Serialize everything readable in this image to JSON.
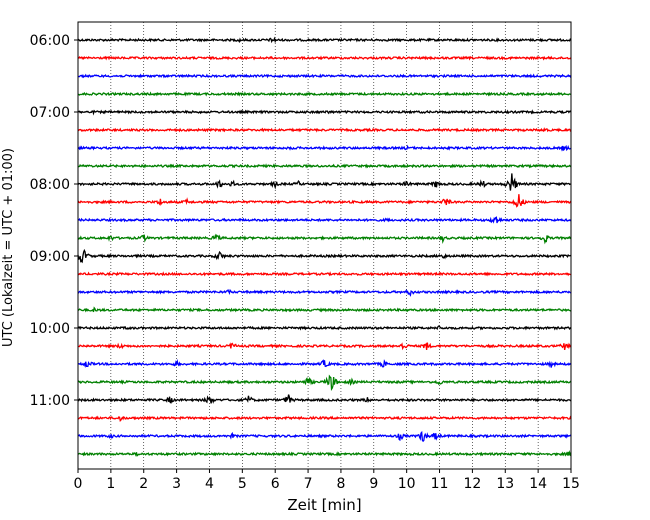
{
  "chart_data": {
    "type": "line",
    "title": "",
    "xlabel": "Zeit  [min]",
    "ylabel": "UTC (Lokalzeit = UTC + 01:00)",
    "xlim": [
      0,
      15
    ],
    "x_ticks": [
      "0",
      "1",
      "2",
      "3",
      "4",
      "5",
      "6",
      "7",
      "8",
      "9",
      "10",
      "11",
      "12",
      "13",
      "14",
      "15"
    ],
    "y_ticks": [
      "06:00",
      "07:00",
      "08:00",
      "09:00",
      "10:00",
      "11:00"
    ],
    "y_tick_trace_index": [
      0,
      4,
      8,
      12,
      16,
      20
    ],
    "grid": "vertical dotted at each minute",
    "colors": {
      "black": "#000000",
      "red": "#ff0000",
      "blue": "#0000ff",
      "green": "#008000"
    },
    "traces": [
      {
        "start": "06:00",
        "color": "#000000",
        "events": [
          [
            4.9,
            0.25
          ],
          [
            5.9,
            0.3
          ],
          [
            6.0,
            0.25
          ]
        ]
      },
      {
        "start": "06:15",
        "color": "#ff0000",
        "events": []
      },
      {
        "start": "06:30",
        "color": "#0000ff",
        "events": []
      },
      {
        "start": "06:45",
        "color": "#008000",
        "events": []
      },
      {
        "start": "07:00",
        "color": "#000000",
        "events": [
          [
            0.5,
            0.2
          ],
          [
            7.6,
            0.25
          ]
        ]
      },
      {
        "start": "07:15",
        "color": "#ff0000",
        "events": [
          [
            14.2,
            0.3
          ]
        ]
      },
      {
        "start": "07:30",
        "color": "#0000ff",
        "events": [
          [
            6.5,
            0.25
          ],
          [
            10.0,
            0.25
          ],
          [
            14.8,
            0.4
          ]
        ]
      },
      {
        "start": "07:45",
        "color": "#008000",
        "events": []
      },
      {
        "start": "08:00",
        "color": "#000000",
        "events": [
          [
            4.3,
            0.5
          ],
          [
            4.7,
            0.4
          ],
          [
            6.0,
            0.4
          ],
          [
            6.7,
            0.35
          ],
          [
            10.0,
            0.4
          ],
          [
            10.9,
            0.5
          ],
          [
            12.3,
            0.5
          ],
          [
            13.2,
            1.3
          ]
        ]
      },
      {
        "start": "08:15",
        "color": "#ff0000",
        "events": [
          [
            2.5,
            0.45
          ],
          [
            3.3,
            0.35
          ],
          [
            11.2,
            0.6
          ],
          [
            13.4,
            1.1
          ]
        ]
      },
      {
        "start": "08:30",
        "color": "#0000ff",
        "events": [
          [
            12.7,
            0.7
          ],
          [
            9.4,
            0.25
          ]
        ]
      },
      {
        "start": "08:45",
        "color": "#008000",
        "events": [
          [
            1.0,
            0.35
          ],
          [
            2.0,
            0.45
          ],
          [
            4.2,
            0.5
          ],
          [
            11.1,
            0.4
          ],
          [
            14.2,
            0.6
          ]
        ]
      },
      {
        "start": "09:00",
        "color": "#000000",
        "events": [
          [
            0.1,
            0.9
          ],
          [
            0.2,
            0.7
          ],
          [
            4.3,
            0.6
          ],
          [
            11.1,
            0.4
          ]
        ]
      },
      {
        "start": "09:15",
        "color": "#ff0000",
        "events": []
      },
      {
        "start": "09:30",
        "color": "#0000ff",
        "events": [
          [
            4.6,
            0.3
          ],
          [
            10.1,
            0.45
          ]
        ]
      },
      {
        "start": "09:45",
        "color": "#008000",
        "events": [
          [
            0.5,
            0.3
          ],
          [
            10.0,
            0.2
          ]
        ]
      },
      {
        "start": "10:00",
        "color": "#000000",
        "events": [
          [
            1.5,
            0.25
          ],
          [
            11.0,
            0.3
          ]
        ]
      },
      {
        "start": "10:15",
        "color": "#ff0000",
        "events": [
          [
            1.3,
            0.35
          ],
          [
            4.7,
            0.45
          ],
          [
            9.9,
            0.5
          ],
          [
            10.6,
            0.55
          ],
          [
            14.8,
            0.5
          ]
        ]
      },
      {
        "start": "10:30",
        "color": "#0000ff",
        "events": [
          [
            0.3,
            0.5
          ],
          [
            3.0,
            0.35
          ],
          [
            7.5,
            0.55
          ],
          [
            9.3,
            0.45
          ],
          [
            14.4,
            0.4
          ]
        ]
      },
      {
        "start": "10:45",
        "color": "#008000",
        "events": [
          [
            7.0,
            0.6
          ],
          [
            7.7,
            1.2
          ],
          [
            8.3,
            0.4
          ],
          [
            11.0,
            0.4
          ]
        ]
      },
      {
        "start": "11:00",
        "color": "#000000",
        "events": [
          [
            2.8,
            0.45
          ],
          [
            4.0,
            0.65
          ],
          [
            5.2,
            0.55
          ],
          [
            6.4,
            0.65
          ],
          [
            8.8,
            0.35
          ]
        ]
      },
      {
        "start": "11:15",
        "color": "#ff0000",
        "events": [
          [
            1.3,
            0.4
          ]
        ]
      },
      {
        "start": "11:30",
        "color": "#0000ff",
        "events": [
          [
            1.0,
            0.3
          ],
          [
            4.7,
            0.3
          ],
          [
            9.8,
            0.5
          ],
          [
            10.5,
            0.75
          ],
          [
            10.9,
            0.55
          ]
        ]
      },
      {
        "start": "11:45",
        "color": "#008000",
        "events": [
          [
            1.8,
            0.25
          ],
          [
            14.9,
            0.3
          ]
        ]
      }
    ]
  }
}
